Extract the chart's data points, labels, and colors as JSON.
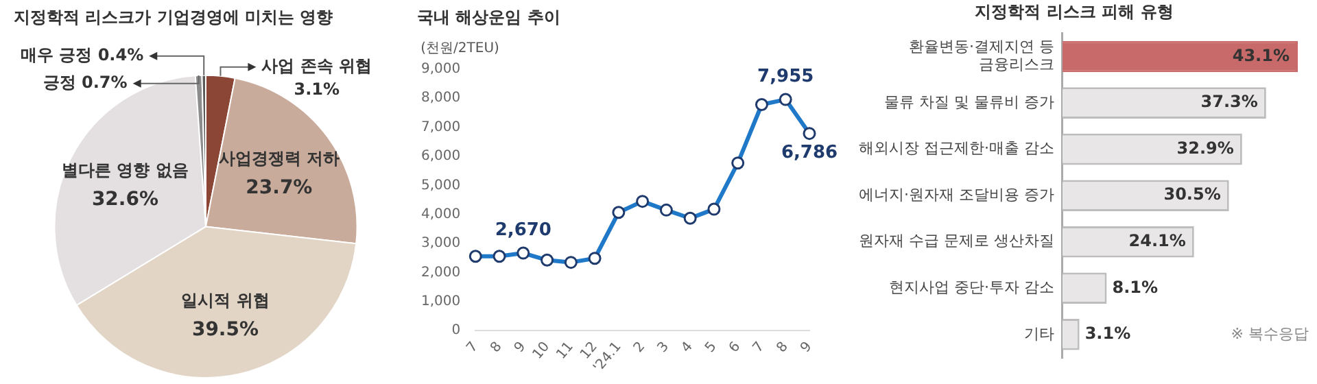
{
  "chart_data": [
    {
      "type": "pie",
      "title": "지정학적 리스크가 기업경영에 미치는 영향",
      "categories": [
        "사업 존속 위협",
        "사업경쟁력 저하",
        "일시적 위협",
        "별다른 영향 없음",
        "긍정",
        "매우 긍정"
      ],
      "values": [
        3.1,
        23.7,
        39.5,
        32.6,
        0.7,
        0.4
      ],
      "colors": [
        "#8b4636",
        "#c9ab9b",
        "#e2d5c6",
        "#e4e0e2",
        "#8c8c8c",
        "#5a5a5a"
      ],
      "value_labels": [
        "3.1%",
        "23.7%",
        "39.5%",
        "32.6%",
        "0.7%",
        "0.4%"
      ],
      "legend": false
    },
    {
      "type": "line",
      "title": "국내 해상운임 추이",
      "ylabel": "(천원/2TEU)",
      "categories": [
        "7",
        "8",
        "9",
        "10",
        "11",
        "12",
        "'24.1",
        "2",
        "3",
        "4",
        "5",
        "6",
        "7",
        "8",
        "9"
      ],
      "series": [
        {
          "color": "#1f78c8",
          "values": [
            2560,
            2560,
            2670,
            2430,
            2350,
            2490,
            4070,
            4450,
            4150,
            3870,
            4180,
            5770,
            7780,
            7955,
            6786
          ]
        }
      ],
      "value_labels": [
        null,
        null,
        "2,670",
        null,
        null,
        null,
        null,
        null,
        null,
        null,
        null,
        null,
        null,
        "7,955",
        "6,786"
      ],
      "ylim": [
        0,
        9000
      ],
      "yticks": [
        0,
        {
          "value": 1000,
          "label": "1,000"
        },
        {
          "value": 2000,
          "label": "2,000"
        },
        {
          "value": 3000,
          "label": "3,000"
        },
        {
          "value": 4000,
          "label": "4,000"
        },
        {
          "value": 5000,
          "label": "5,000"
        },
        {
          "value": 6000,
          "label": "6,000"
        },
        {
          "value": 7000,
          "label": "7,000"
        },
        {
          "value": 8000,
          "label": "8,000"
        },
        {
          "value": 9000,
          "label": "9,000"
        }
      ],
      "grid": false,
      "marker": "circle",
      "legend": false
    },
    {
      "type": "bar",
      "orientation": "horizontal",
      "title": "지정학적 리스크 피해 유형",
      "categories": [
        "환율변동·결제지연 등 금융리스크",
        "물류 차질 및 물류비 증가",
        "해외시장 접근제한·매출 감소",
        "에너지·원자재 조달비용 증가",
        "원자재 수급 문제로 생산차질",
        "현지사업 중단·투자 감소",
        "기타"
      ],
      "values": [
        43.1,
        37.3,
        32.9,
        30.5,
        24.1,
        8.1,
        3.1
      ],
      "colors": [
        "#c96a6a",
        "#e8e6e6",
        "#e8e6e6",
        "#e8e6e6",
        "#e8e6e6",
        "#e8e6e6",
        "#e8e6e6"
      ],
      "value_labels": [
        "43.1%",
        "37.3%",
        "32.9%",
        "30.5%",
        "24.1%",
        "8.1%",
        "3.1%"
      ],
      "annotations": [
        "※ 복수응답"
      ],
      "legend": false,
      "grid": false
    }
  ]
}
